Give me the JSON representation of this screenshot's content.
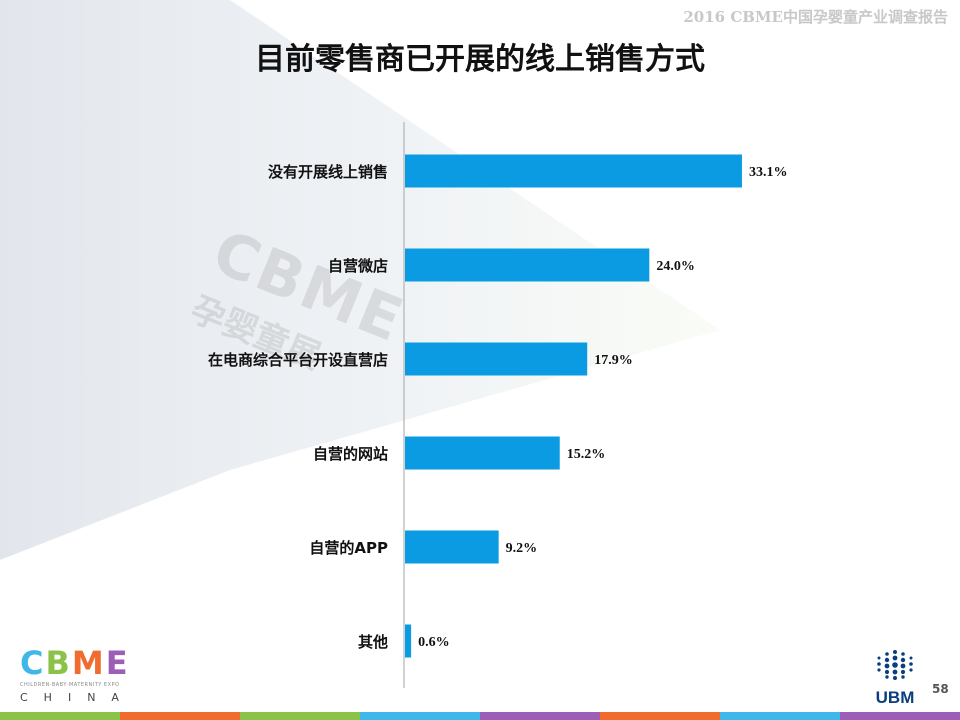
{
  "header": {
    "report_title": "2016 CBME中国孕婴童产业调查报告"
  },
  "chart_data": {
    "type": "bar",
    "orientation": "horizontal",
    "title": "目前零售商已开展的线上销售方式",
    "categories": [
      "没有开展线上销售",
      "自营微店",
      "在电商综合平台开设直营店",
      "自营的网站",
      "自营的APP",
      "其他"
    ],
    "values": [
      33.1,
      24.0,
      17.9,
      15.2,
      9.2,
      0.6
    ],
    "value_labels": [
      "33.1%",
      "24.0%",
      "17.9%",
      "15.2%",
      "9.2%",
      "0.6%"
    ],
    "xlabel": "",
    "ylabel": "",
    "xlim": [
      0,
      40
    ],
    "grid": false,
    "legend": "none",
    "bar_color": "#0a9be3"
  },
  "watermark": {
    "logo": "CBME",
    "text_cn": "孕婴童展"
  },
  "footer": {
    "logo_letters": [
      "C",
      "B",
      "M",
      "E"
    ],
    "logo_colors": [
      "#3fb7e8",
      "#8bc34a",
      "#ef6c2e",
      "#9c5fb5"
    ],
    "logo_subtitle": "CHILDREN·BABY·MATERNITY EXPO",
    "logo_china": "CHINA",
    "ubm_text": "UBM",
    "page_number": "58",
    "bar_colors": [
      "#8bc34a",
      "#ef6c2e",
      "#8bc34a",
      "#3fb7e8",
      "#9c5fb5",
      "#ef6c2e",
      "#3fb7e8",
      "#9c5fb5"
    ]
  }
}
